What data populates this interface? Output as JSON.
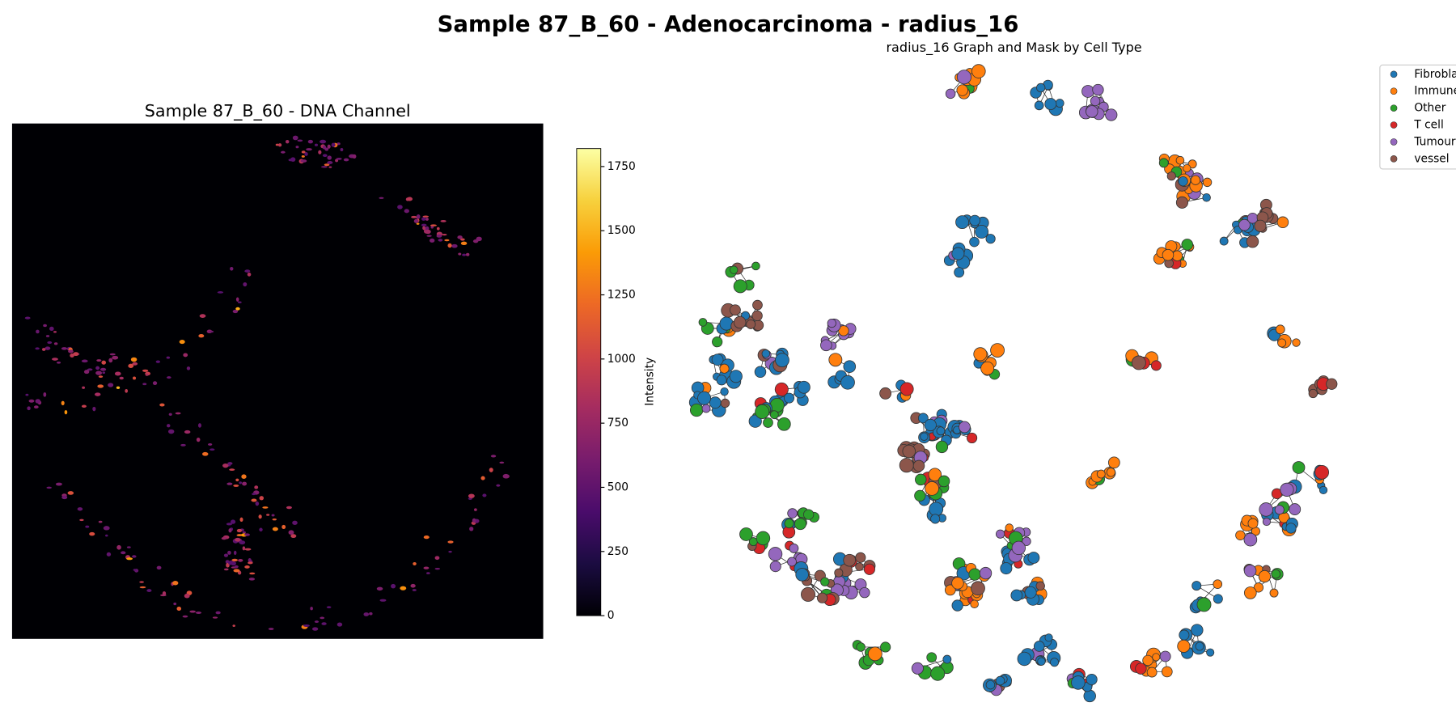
{
  "title": "Sample 87_B_60 - Adenocarcinoma - radius_16",
  "chart_data": [
    {
      "type": "heatmap",
      "title": "Sample 87_B_60 - DNA Channel",
      "colormap": "inferno",
      "colorbar": {
        "label": "Intensity",
        "lim": [
          0,
          1820
        ],
        "ticks": [
          0,
          250,
          500,
          750,
          1000,
          1250,
          1500,
          1750
        ]
      }
    },
    {
      "type": "scatter",
      "title": "radius_16 Graph and Mask by Cell Type",
      "legend": "upper right",
      "series": [
        {
          "name": "Fibroblast",
          "color": "#1f77b4"
        },
        {
          "name": "Immune",
          "color": "#ff7f0e"
        },
        {
          "name": "Other",
          "color": "#2ca02c"
        },
        {
          "name": "T cell",
          "color": "#d62728"
        },
        {
          "name": "Tumour",
          "color": "#9467bd"
        },
        {
          "name": "vessel",
          "color": "#8c564b"
        }
      ]
    }
  ]
}
